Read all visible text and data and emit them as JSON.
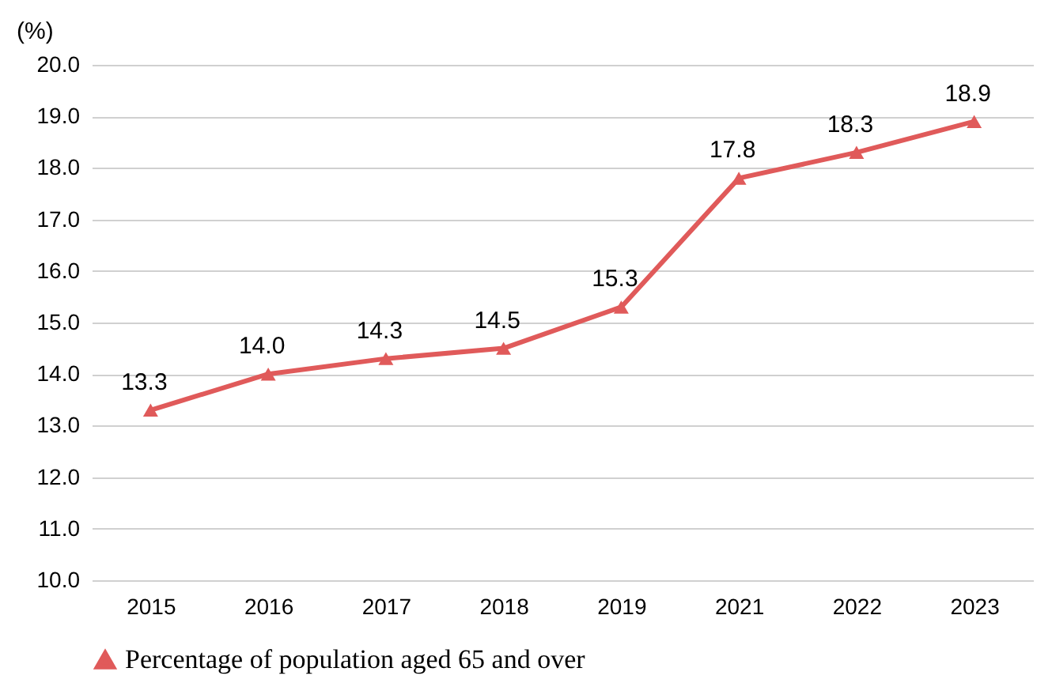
{
  "chart_data": {
    "type": "line",
    "ylabel": "(%)",
    "categories": [
      "2015",
      "2016",
      "2017",
      "2018",
      "2019",
      "2021",
      "2022",
      "2023"
    ],
    "series": [
      {
        "name": "Percentage of population aged 65 and over",
        "color": "#e05a5a",
        "values": [
          13.3,
          14.0,
          14.3,
          14.5,
          15.3,
          17.8,
          18.3,
          18.9
        ],
        "value_labels": [
          "13.3",
          "14.0",
          "14.3",
          "14.5",
          "15.3",
          "17.8",
          "18.3",
          "18.9"
        ]
      }
    ],
    "ylim": [
      10,
      20
    ],
    "yticks": [
      {
        "value": 10,
        "label": "10.0"
      },
      {
        "value": 11,
        "label": "11.0"
      },
      {
        "value": 12,
        "label": "12.0"
      },
      {
        "value": 13,
        "label": "13.0"
      },
      {
        "value": 14,
        "label": "14.0"
      },
      {
        "value": 15,
        "label": "15.0"
      },
      {
        "value": 16,
        "label": "16.0"
      },
      {
        "value": 17,
        "label": "17.0"
      },
      {
        "value": 18,
        "label": "18.0"
      },
      {
        "value": 19,
        "label": "19.0"
      },
      {
        "value": 20,
        "label": "20.0"
      }
    ],
    "grid": "y",
    "legend": "bottom",
    "marker": "triangle",
    "line_style": "solid"
  }
}
